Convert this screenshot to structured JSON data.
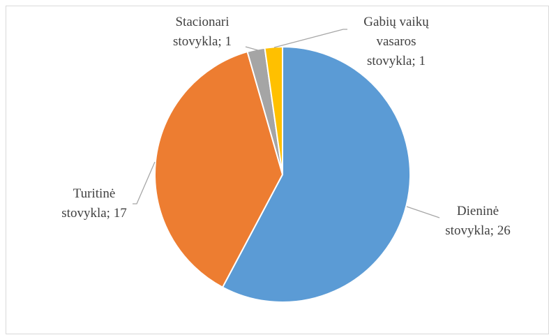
{
  "chart_data": {
    "type": "pie",
    "categories": [
      "Dieninė stovykla",
      "Turitinė stovykla",
      "Stacionari stovykla",
      "Gabių vaikų vasaros stovykla"
    ],
    "values": [
      26,
      17,
      1,
      1
    ],
    "value_labels": [
      "Dieninė stovykla; 26",
      "Turitinė stovykla; 17",
      "Stacionari stovykla; 1",
      "Gabių vaikų vasaros stovykla; 1"
    ],
    "colors": [
      "#5b9bd5",
      "#ed7d31",
      "#a5a5a5",
      "#ffc000"
    ]
  }
}
